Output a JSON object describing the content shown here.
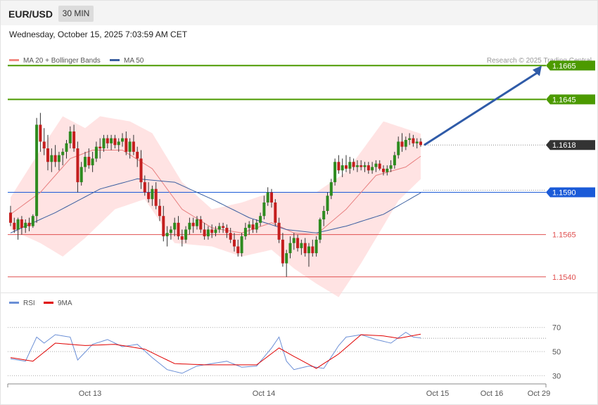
{
  "header": {
    "symbol": "EUR/USD",
    "timeframe": "30 MIN"
  },
  "datetime": "Wednesday, October 15, 2025 7:03:59 AM CET",
  "legend": {
    "main": [
      {
        "label": "MA 20 + Bollinger Bands",
        "color": "#f28b82"
      },
      {
        "label": "MA 50",
        "color": "#3a5fa0"
      }
    ],
    "rsi": [
      {
        "label": "RSI",
        "color": "#6b8fd6"
      },
      {
        "label": "9MA",
        "color": "#e00000"
      }
    ]
  },
  "credit": "Research © 2025 Trading Central",
  "chart_data": {
    "type": "candlestick",
    "x_axis_labels": [
      "Oct 13",
      "Oct 14",
      "Oct 15",
      "Oct 16",
      "Oct 29"
    ],
    "price_range": [
      1.1532,
      1.1678
    ],
    "levels": [
      {
        "value": 1.1665,
        "label": "1.1665",
        "kind": "target",
        "color": "#4c9a00"
      },
      {
        "value": 1.1645,
        "label": "1.1645",
        "kind": "resistance",
        "color": "#4c9a00"
      },
      {
        "value": 1.1618,
        "label": "1.1618",
        "kind": "last-price",
        "color": "#333333"
      },
      {
        "value": 1.159,
        "label": "1.1590",
        "kind": "pivot",
        "color": "#1a5ad8"
      },
      {
        "value": 1.1565,
        "label": "1.1565",
        "kind": "support",
        "color": "#e05050"
      },
      {
        "value": 1.154,
        "label": "1.1540",
        "kind": "support",
        "color": "#e05050"
      }
    ],
    "forecast_arrow": {
      "from": 1.1618,
      "to": 1.1665
    },
    "rsi": {
      "range": [
        15,
        85
      ],
      "levels": [
        70,
        50,
        30
      ],
      "tick_labels": [
        "70",
        "50",
        "30"
      ]
    },
    "candles": [
      [
        1.1578,
        1.1582,
        1.157,
        1.1572
      ],
      [
        1.1572,
        1.1575,
        1.1566,
        1.1568
      ],
      [
        1.1568,
        1.1575,
        1.1562,
        1.1574
      ],
      [
        1.1574,
        1.1576,
        1.1565,
        1.1569
      ],
      [
        1.1569,
        1.1574,
        1.1566,
        1.1572
      ],
      [
        1.1572,
        1.1575,
        1.1567,
        1.157
      ],
      [
        1.157,
        1.1577,
        1.1569,
        1.1576
      ],
      [
        1.1576,
        1.1634,
        1.1572,
        1.163
      ],
      [
        1.163,
        1.1637,
        1.1614,
        1.162
      ],
      [
        1.162,
        1.1628,
        1.1612,
        1.1616
      ],
      [
        1.1616,
        1.1624,
        1.1603,
        1.1608
      ],
      [
        1.1608,
        1.1616,
        1.1602,
        1.1612
      ],
      [
        1.1612,
        1.1618,
        1.1605,
        1.1608
      ],
      [
        1.1608,
        1.1614,
        1.1603,
        1.1612
      ],
      [
        1.1612,
        1.1616,
        1.1606,
        1.1614
      ],
      [
        1.1614,
        1.1621,
        1.161,
        1.1619
      ],
      [
        1.1619,
        1.1629,
        1.1616,
        1.1626
      ],
      [
        1.1626,
        1.163,
        1.1614,
        1.1616
      ],
      [
        1.1616,
        1.162,
        1.159,
        1.1596
      ],
      [
        1.1596,
        1.1608,
        1.1594,
        1.1605
      ],
      [
        1.1605,
        1.1614,
        1.1602,
        1.1611
      ],
      [
        1.1611,
        1.1616,
        1.1604,
        1.1606
      ],
      [
        1.1606,
        1.1614,
        1.1602,
        1.161
      ],
      [
        1.161,
        1.162,
        1.1608,
        1.1617
      ],
      [
        1.1617,
        1.1622,
        1.161,
        1.1616
      ],
      [
        1.1616,
        1.1624,
        1.1614,
        1.1622
      ],
      [
        1.1622,
        1.1624,
        1.1616,
        1.1619
      ],
      [
        1.1619,
        1.1624,
        1.1615,
        1.1622
      ],
      [
        1.1622,
        1.1624,
        1.1616,
        1.1618
      ],
      [
        1.1618,
        1.1622,
        1.1614,
        1.162
      ],
      [
        1.162,
        1.1625,
        1.1617,
        1.1622
      ],
      [
        1.1622,
        1.1626,
        1.1612,
        1.1614
      ],
      [
        1.1614,
        1.1622,
        1.161,
        1.162
      ],
      [
        1.162,
        1.1624,
        1.1612,
        1.1614
      ],
      [
        1.1614,
        1.1617,
        1.1605,
        1.161
      ],
      [
        1.161,
        1.1615,
        1.1592,
        1.1596
      ],
      [
        1.1596,
        1.16,
        1.1588,
        1.159
      ],
      [
        1.159,
        1.1596,
        1.1584,
        1.1586
      ],
      [
        1.1586,
        1.1594,
        1.1582,
        1.1592
      ],
      [
        1.1592,
        1.1596,
        1.158,
        1.1582
      ],
      [
        1.1582,
        1.1586,
        1.1573,
        1.1576
      ],
      [
        1.1576,
        1.1582,
        1.1561,
        1.1564
      ],
      [
        1.1564,
        1.157,
        1.1558,
        1.1566
      ],
      [
        1.1566,
        1.157,
        1.1562,
        1.1568
      ],
      [
        1.1568,
        1.1575,
        1.1564,
        1.1572
      ],
      [
        1.1572,
        1.1576,
        1.1562,
        1.1564
      ],
      [
        1.1564,
        1.1568,
        1.1558,
        1.1562
      ],
      [
        1.1562,
        1.157,
        1.156,
        1.1568
      ],
      [
        1.1568,
        1.1575,
        1.1565,
        1.1572
      ],
      [
        1.1572,
        1.1575,
        1.1566,
        1.157
      ],
      [
        1.157,
        1.1576,
        1.1568,
        1.1574
      ],
      [
        1.1574,
        1.1576,
        1.1566,
        1.1568
      ],
      [
        1.1568,
        1.1572,
        1.1562,
        1.1564
      ],
      [
        1.1564,
        1.157,
        1.1562,
        1.1568
      ],
      [
        1.1568,
        1.1571,
        1.1563,
        1.1566
      ],
      [
        1.1566,
        1.157,
        1.1564,
        1.1568
      ],
      [
        1.1568,
        1.1572,
        1.1566,
        1.157
      ],
      [
        1.157,
        1.1572,
        1.1566,
        1.1569
      ],
      [
        1.1569,
        1.1571,
        1.1563,
        1.1566
      ],
      [
        1.1566,
        1.1569,
        1.156,
        1.1562
      ],
      [
        1.1562,
        1.1566,
        1.1555,
        1.1558
      ],
      [
        1.1558,
        1.1562,
        1.1552,
        1.1554
      ],
      [
        1.1554,
        1.1566,
        1.1552,
        1.1564
      ],
      [
        1.1564,
        1.1572,
        1.1562,
        1.1569
      ],
      [
        1.1569,
        1.1573,
        1.1565,
        1.1571
      ],
      [
        1.1571,
        1.1574,
        1.1566,
        1.1568
      ],
      [
        1.1568,
        1.1574,
        1.1566,
        1.1572
      ],
      [
        1.1572,
        1.1578,
        1.157,
        1.1576
      ],
      [
        1.1576,
        1.1588,
        1.1574,
        1.1584
      ],
      [
        1.1584,
        1.1593,
        1.1582,
        1.159
      ],
      [
        1.159,
        1.1592,
        1.1581,
        1.1584
      ],
      [
        1.1584,
        1.1586,
        1.157,
        1.1572
      ],
      [
        1.1572,
        1.1575,
        1.156,
        1.1562
      ],
      [
        1.1562,
        1.1566,
        1.1546,
        1.1548
      ],
      [
        1.1548,
        1.1556,
        1.154,
        1.1554
      ],
      [
        1.1554,
        1.1564,
        1.1551,
        1.156
      ],
      [
        1.156,
        1.1566,
        1.1556,
        1.1563
      ],
      [
        1.1563,
        1.1565,
        1.1555,
        1.1557
      ],
      [
        1.1557,
        1.1562,
        1.1553,
        1.156
      ],
      [
        1.156,
        1.1563,
        1.1552,
        1.1554
      ],
      [
        1.1554,
        1.156,
        1.1546,
        1.1558
      ],
      [
        1.1558,
        1.1562,
        1.1552,
        1.1554
      ],
      [
        1.1554,
        1.1564,
        1.1552,
        1.1562
      ],
      [
        1.1562,
        1.1575,
        1.156,
        1.1574
      ],
      [
        1.1574,
        1.1582,
        1.157,
        1.1579
      ],
      [
        1.1579,
        1.159,
        1.1577,
        1.1588
      ],
      [
        1.1588,
        1.1598,
        1.1586,
        1.1596
      ],
      [
        1.1596,
        1.161,
        1.1594,
        1.1608
      ],
      [
        1.1608,
        1.1612,
        1.1601,
        1.1603
      ],
      [
        1.1603,
        1.161,
        1.1599,
        1.1606
      ],
      [
        1.1606,
        1.1612,
        1.1602,
        1.1604
      ],
      [
        1.1604,
        1.1611,
        1.1601,
        1.1608
      ],
      [
        1.1608,
        1.161,
        1.1603,
        1.1605
      ],
      [
        1.1605,
        1.1609,
        1.1602,
        1.1606
      ],
      [
        1.1606,
        1.1609,
        1.1603,
        1.1605
      ],
      [
        1.1605,
        1.1608,
        1.1602,
        1.1606
      ],
      [
        1.1606,
        1.1608,
        1.1601,
        1.1603
      ],
      [
        1.1603,
        1.1608,
        1.1601,
        1.1605
      ],
      [
        1.1605,
        1.1609,
        1.1602,
        1.1607
      ],
      [
        1.1607,
        1.1609,
        1.1603,
        1.1604
      ],
      [
        1.1604,
        1.1606,
        1.16,
        1.1602
      ],
      [
        1.1602,
        1.1606,
        1.16,
        1.1604
      ],
      [
        1.1604,
        1.1609,
        1.1602,
        1.1606
      ],
      [
        1.1606,
        1.1614,
        1.1604,
        1.1612
      ],
      [
        1.1612,
        1.1623,
        1.161,
        1.162
      ],
      [
        1.162,
        1.1625,
        1.1614,
        1.1617
      ],
      [
        1.1617,
        1.1623,
        1.1615,
        1.1621
      ],
      [
        1.1621,
        1.1625,
        1.1618,
        1.1622
      ],
      [
        1.1622,
        1.1624,
        1.1617,
        1.1619
      ],
      [
        1.1619,
        1.1622,
        1.1616,
        1.162
      ],
      [
        1.162,
        1.1622,
        1.1617,
        1.1618
      ]
    ],
    "bb_mid": [
      [
        0,
        1.1577
      ],
      [
        8,
        1.159
      ],
      [
        16,
        1.161
      ],
      [
        22,
        1.1615
      ],
      [
        30,
        1.1615
      ],
      [
        38,
        1.1604
      ],
      [
        46,
        1.158
      ],
      [
        54,
        1.1569
      ],
      [
        62,
        1.1566
      ],
      [
        70,
        1.1572
      ],
      [
        76,
        1.1566
      ],
      [
        82,
        1.1565
      ],
      [
        90,
        1.158
      ],
      [
        98,
        1.16
      ],
      [
        106,
        1.1605
      ],
      [
        111,
        1.1613
      ]
    ],
    "bb_upper": [
      [
        0,
        1.1587
      ],
      [
        8,
        1.1615
      ],
      [
        14,
        1.1635
      ],
      [
        20,
        1.1628
      ],
      [
        24,
        1.1635
      ],
      [
        32,
        1.1632
      ],
      [
        38,
        1.1625
      ],
      [
        46,
        1.1596
      ],
      [
        54,
        1.158
      ],
      [
        62,
        1.1584
      ],
      [
        70,
        1.159
      ],
      [
        76,
        1.159
      ],
      [
        82,
        1.159
      ],
      [
        90,
        1.1602
      ],
      [
        100,
        1.1632
      ],
      [
        111,
        1.1624
      ]
    ],
    "bb_lower": [
      [
        0,
        1.1568
      ],
      [
        8,
        1.156
      ],
      [
        14,
        1.1552
      ],
      [
        20,
        1.1563
      ],
      [
        28,
        1.158
      ],
      [
        36,
        1.1586
      ],
      [
        44,
        1.156
      ],
      [
        54,
        1.1558
      ],
      [
        62,
        1.1552
      ],
      [
        70,
        1.1556
      ],
      [
        76,
        1.1545
      ],
      [
        82,
        1.1536
      ],
      [
        88,
        1.1528
      ],
      [
        94,
        1.1548
      ],
      [
        104,
        1.1585
      ],
      [
        111,
        1.16
      ]
    ],
    "ma50": [
      [
        0,
        1.1566
      ],
      [
        12,
        1.1578
      ],
      [
        24,
        1.1592
      ],
      [
        34,
        1.1598
      ],
      [
        44,
        1.1596
      ],
      [
        54,
        1.1586
      ],
      [
        64,
        1.1575
      ],
      [
        74,
        1.1568
      ],
      [
        82,
        1.1566
      ],
      [
        90,
        1.157
      ],
      [
        100,
        1.1577
      ],
      [
        111,
        1.1591
      ]
    ],
    "rsi_series": [
      [
        0,
        44
      ],
      [
        4,
        42
      ],
      [
        7,
        62
      ],
      [
        9,
        57
      ],
      [
        12,
        64
      ],
      [
        16,
        62
      ],
      [
        18,
        43
      ],
      [
        22,
        56
      ],
      [
        26,
        60
      ],
      [
        30,
        54
      ],
      [
        34,
        56
      ],
      [
        38,
        45
      ],
      [
        42,
        35
      ],
      [
        46,
        32
      ],
      [
        50,
        38
      ],
      [
        54,
        40
      ],
      [
        58,
        42
      ],
      [
        62,
        37
      ],
      [
        66,
        38
      ],
      [
        70,
        53
      ],
      [
        72,
        62
      ],
      [
        74,
        42
      ],
      [
        76,
        35
      ],
      [
        80,
        38
      ],
      [
        84,
        36
      ],
      [
        88,
        55
      ],
      [
        90,
        62
      ],
      [
        94,
        64
      ],
      [
        98,
        60
      ],
      [
        102,
        57
      ],
      [
        106,
        66
      ],
      [
        108,
        62
      ],
      [
        111,
        61
      ]
    ],
    "rsi_ma9": [
      [
        0,
        45
      ],
      [
        6,
        42
      ],
      [
        12,
        57
      ],
      [
        20,
        55
      ],
      [
        28,
        56
      ],
      [
        36,
        52
      ],
      [
        44,
        40
      ],
      [
        52,
        39
      ],
      [
        60,
        39
      ],
      [
        66,
        39
      ],
      [
        72,
        53
      ],
      [
        76,
        46
      ],
      [
        82,
        36
      ],
      [
        88,
        48
      ],
      [
        94,
        64
      ],
      [
        100,
        63
      ],
      [
        104,
        61
      ],
      [
        111,
        65
      ]
    ]
  }
}
